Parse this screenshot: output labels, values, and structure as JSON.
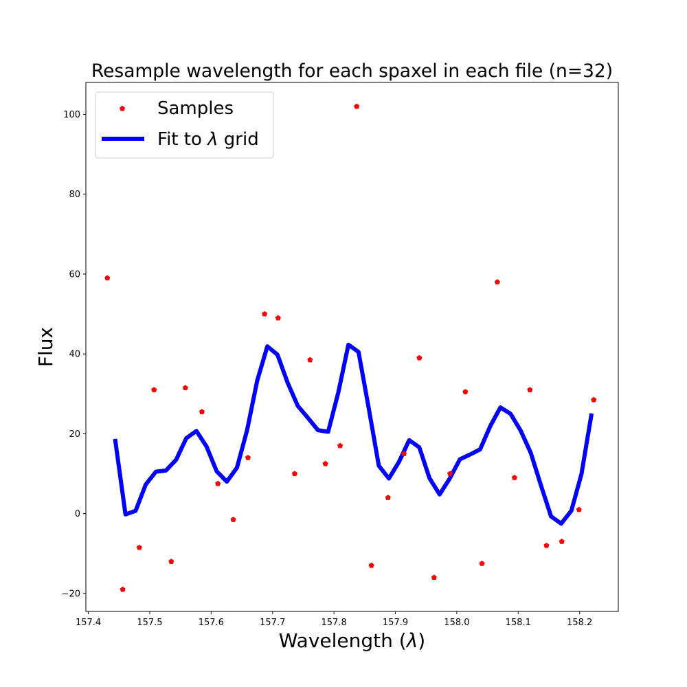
{
  "chart_data": {
    "type": "line",
    "title": "Resample wavelength for each spaxel in each file (n=32)",
    "xlabel": "Wavelength (λ)",
    "ylabel": "Flux",
    "xlim": [
      157.396,
      158.263
    ],
    "ylim": [
      -24.5,
      108
    ],
    "xticks": [
      157.4,
      157.5,
      157.6,
      157.7,
      157.8,
      157.9,
      158.0,
      158.1,
      158.2
    ],
    "yticks": [
      -20,
      0,
      20,
      40,
      60,
      80,
      100
    ],
    "grid": false,
    "legend": {
      "placement": "upper-left"
    },
    "colors": {
      "samples": "#ff0000",
      "fit": "#0000ff"
    },
    "series": [
      {
        "name": "Samples",
        "style": "markers",
        "marker": "pentagon",
        "x": [
          157.431,
          157.456,
          157.483,
          157.507,
          157.535,
          157.558,
          157.585,
          157.611,
          157.636,
          157.66,
          157.687,
          157.709,
          157.736,
          157.761,
          157.786,
          157.81,
          157.837,
          157.861,
          157.888,
          157.914,
          157.939,
          157.963,
          157.989,
          158.014,
          158.041,
          158.066,
          158.094,
          158.119,
          158.146,
          158.171,
          158.199,
          158.223
        ],
        "y": [
          59,
          -19,
          -8.5,
          31,
          -12,
          31.5,
          25.5,
          7.5,
          -1.5,
          14,
          50,
          49,
          10,
          38.5,
          12.5,
          17,
          102,
          -13,
          4,
          15,
          39,
          -16,
          10,
          30.5,
          -12.5,
          58,
          9,
          31,
          -8,
          -7,
          1,
          28.5
        ]
      },
      {
        "name": "Fit to λ grid",
        "style": "line",
        "x": [
          157.444,
          157.4605,
          157.477,
          157.4935,
          157.51,
          157.5265,
          157.543,
          157.5595,
          157.576,
          157.5925,
          157.609,
          157.6255,
          157.642,
          157.6585,
          157.675,
          157.6915,
          157.708,
          157.7245,
          157.741,
          157.7575,
          157.774,
          157.7905,
          157.807,
          157.8235,
          157.84,
          157.8565,
          157.873,
          157.8895,
          157.906,
          157.9225,
          157.939,
          157.9555,
          157.972,
          157.9885,
          158.005,
          158.0215,
          158.038,
          158.0545,
          158.071,
          158.0875,
          158.104,
          158.1205,
          158.137,
          158.1535,
          158.17,
          158.1865,
          158.203,
          158.219
        ],
        "y": [
          18.2,
          -0.2,
          0.7,
          7.3,
          10.5,
          10.8,
          13.5,
          18.9,
          20.7,
          16.8,
          10.6,
          8.0,
          11.5,
          20.9,
          33.3,
          41.9,
          39.8,
          32.8,
          27.0,
          24.0,
          20.9,
          20.5,
          30.3,
          42.3,
          40.5,
          26.5,
          12.0,
          8.8,
          13.0,
          18.4,
          16.6,
          8.9,
          4.8,
          8.8,
          13.6,
          14.8,
          16.1,
          21.9,
          26.6,
          25.0,
          20.8,
          15.2,
          7.1,
          -0.7,
          -2.5,
          0.7,
          9.9,
          24.6
        ]
      }
    ]
  }
}
